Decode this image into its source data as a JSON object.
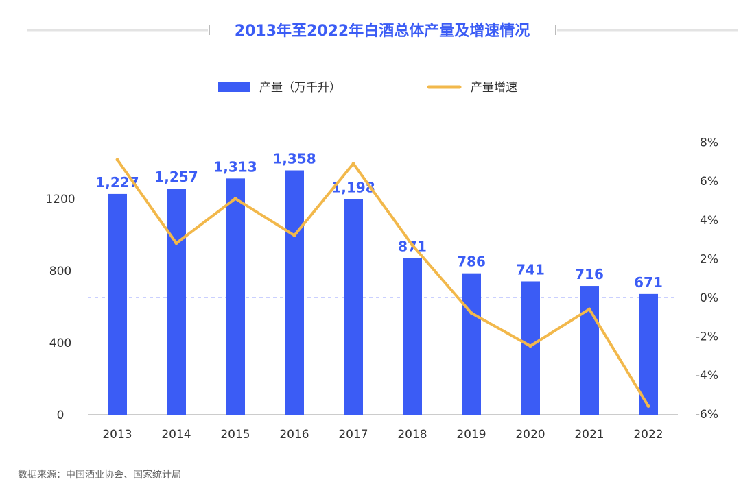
{
  "chart_data": {
    "type": "bar+line",
    "title": "2013年至2022年白酒总体产量及增速情况",
    "categories": [
      "2013",
      "2014",
      "2015",
      "2016",
      "2017",
      "2018",
      "2019",
      "2020",
      "2021",
      "2022"
    ],
    "series": [
      {
        "name": "产量（万千升）",
        "type": "bar",
        "axis": "left",
        "values": [
          1227,
          1257,
          1313,
          1358,
          1198,
          871,
          786,
          741,
          716,
          671
        ],
        "labels": [
          "1,227",
          "1,257",
          "1,313",
          "1,358",
          "1,198",
          "871",
          "786",
          "741",
          "716",
          "671"
        ],
        "color": "#3b5cf5"
      },
      {
        "name": "产量增速",
        "type": "line",
        "axis": "right",
        "values": [
          7.1,
          2.8,
          5.1,
          3.2,
          6.9,
          2.7,
          -0.8,
          -2.5,
          -0.6,
          -5.6
        ],
        "color": "#f2b84b"
      }
    ],
    "y_left": {
      "ticks": [
        0,
        400,
        800,
        1200
      ],
      "tick_labels": [
        "0",
        "400",
        "800",
        "1200"
      ],
      "range": [
        0,
        1650
      ]
    },
    "y_right": {
      "ticks": [
        -6,
        -4,
        -2,
        0,
        2,
        4,
        6,
        8
      ],
      "tick_labels": [
        "-6%",
        "-4%",
        "-2%",
        "0%",
        "2%",
        "4%",
        "6%",
        "8%"
      ],
      "range": [
        -6,
        8
      ]
    },
    "zero_line_color": "#b8c0ff",
    "axis_color": "#bbbbbb"
  },
  "source": "数据来源：中国酒业协会、国家统计局"
}
